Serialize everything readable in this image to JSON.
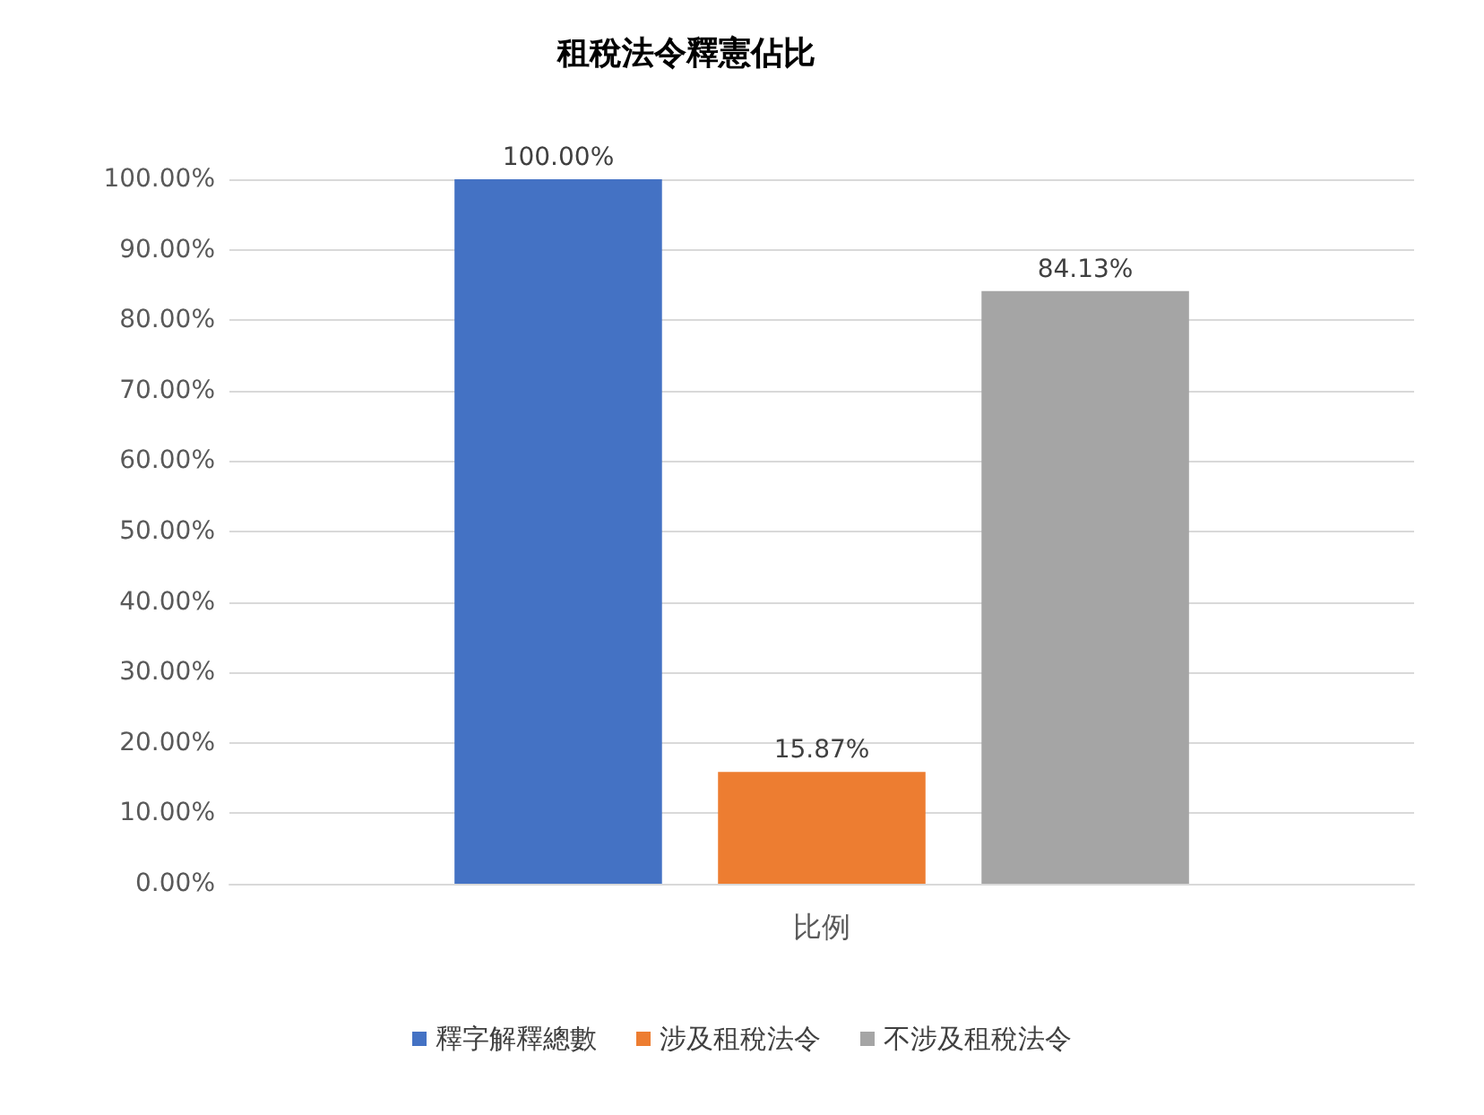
{
  "chart_data": {
    "type": "bar",
    "title": "租稅法令釋憲佔比",
    "categories": [
      "比例"
    ],
    "series": [
      {
        "name": "釋字解釋總數",
        "color": "#4472c4",
        "values": [
          100
        ],
        "value_labels": [
          "100.00%"
        ]
      },
      {
        "name": "涉及租稅法令",
        "color": "#ed7d31",
        "values": [
          15.87
        ],
        "value_labels": [
          "15.87%"
        ]
      },
      {
        "name": "不涉及租稅法令",
        "color": "#a5a5a5",
        "values": [
          84.13
        ],
        "value_labels": [
          "84.13%"
        ]
      }
    ],
    "ylim": [
      0,
      100
    ],
    "yticks": [
      {
        "value": 0,
        "label": "0.00%"
      },
      {
        "value": 10,
        "label": "10.00%"
      },
      {
        "value": 20,
        "label": "20.00%"
      },
      {
        "value": 30,
        "label": "30.00%"
      },
      {
        "value": 40,
        "label": "40.00%"
      },
      {
        "value": 50,
        "label": "50.00%"
      },
      {
        "value": 60,
        "label": "60.00%"
      },
      {
        "value": 70,
        "label": "70.00%"
      },
      {
        "value": 80,
        "label": "80.00%"
      },
      {
        "value": 90,
        "label": "90.00%"
      },
      {
        "value": 100,
        "label": "100.00%"
      }
    ],
    "grid": "y",
    "legend": "bottom"
  }
}
